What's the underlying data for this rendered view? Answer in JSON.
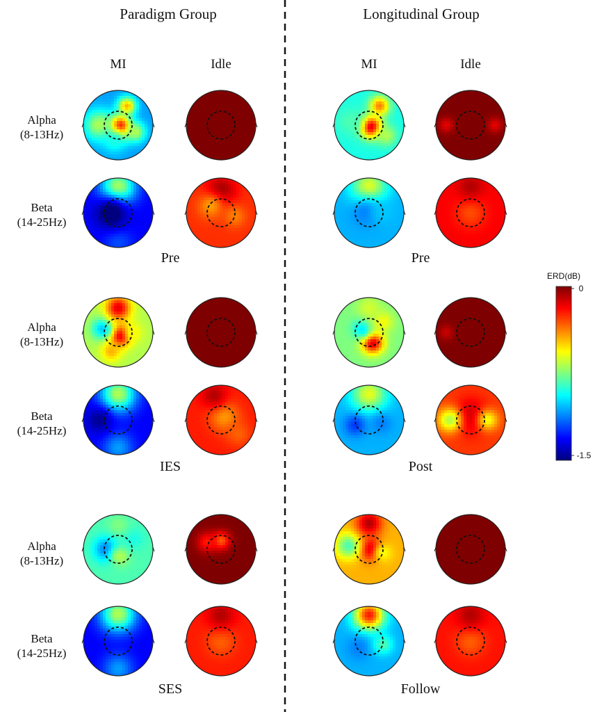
{
  "groups": [
    {
      "title": "Paradigm Group",
      "columns": [
        "MI",
        "Idle"
      ],
      "sessions": [
        "Pre",
        "IES",
        "SES"
      ]
    },
    {
      "title": "Longitudinal Group",
      "columns": [
        "MI",
        "Idle"
      ],
      "sessions": [
        "Pre",
        "Post",
        "Follow"
      ]
    }
  ],
  "rows": [
    {
      "band": "Alpha",
      "range": "(8-13Hz)"
    },
    {
      "band": "Beta",
      "range": "(14-25Hz)"
    }
  ],
  "colorbar": {
    "title": "ERD(dB)",
    "max_label": "0",
    "min_label": "-1.5",
    "max_value": 0,
    "min_value": -1.5,
    "colors": [
      "#00007f",
      "#0000ff",
      "#007fff",
      "#00ffff",
      "#7fff7f",
      "#ffff00",
      "#ff7f00",
      "#ff0000",
      "#7f0000"
    ]
  },
  "colors": {
    "divider": "#111111",
    "head_outline": "#222222",
    "dashed_circle": "#111111"
  },
  "maps": [
    {
      "id": "pg-pre-alpha-mi",
      "base": 0.28,
      "blobs": [
        [
          0.05,
          -0.05,
          1.0,
          0.22
        ],
        [
          0.25,
          0.55,
          0.7,
          0.18
        ],
        [
          -0.55,
          0.0,
          0.55,
          0.3
        ],
        [
          -0.1,
          -0.45,
          0.4,
          0.25
        ],
        [
          0.5,
          -0.2,
          0.55,
          0.2
        ]
      ]
    },
    {
      "id": "pg-pre-alpha-idle",
      "base": 1.0,
      "blobs": []
    },
    {
      "id": "pg-pre-beta-mi",
      "base": 0.12,
      "blobs": [
        [
          0.0,
          0.75,
          0.55,
          0.35
        ],
        [
          0.0,
          -0.85,
          0.2,
          0.3
        ],
        [
          -0.2,
          0.0,
          -0.05,
          0.3
        ]
      ]
    },
    {
      "id": "pg-pre-beta-idle",
      "base": 0.83,
      "blobs": [
        [
          0.0,
          0.65,
          0.97,
          0.3
        ],
        [
          -0.3,
          0.2,
          0.72,
          0.25
        ],
        [
          0.4,
          -0.1,
          0.75,
          0.22
        ]
      ]
    },
    {
      "id": "pg-ies-alpha-mi",
      "base": 0.55,
      "blobs": [
        [
          0.05,
          -0.1,
          0.95,
          0.22
        ],
        [
          -0.45,
          0.1,
          0.32,
          0.22
        ],
        [
          0.45,
          0.0,
          0.62,
          0.2
        ],
        [
          0.0,
          0.7,
          0.9,
          0.25
        ],
        [
          -0.2,
          -0.55,
          0.7,
          0.2
        ]
      ]
    },
    {
      "id": "pg-ies-alpha-idle",
      "base": 1.0,
      "blobs": []
    },
    {
      "id": "pg-ies-beta-mi",
      "base": 0.12,
      "blobs": [
        [
          0.0,
          0.75,
          0.55,
          0.35
        ],
        [
          0.0,
          -0.8,
          0.28,
          0.3
        ],
        [
          -0.55,
          0.0,
          0.02,
          0.25
        ]
      ]
    },
    {
      "id": "pg-ies-beta-idle",
      "base": 0.85,
      "blobs": [
        [
          0.1,
          0.1,
          0.72,
          0.3
        ],
        [
          -0.2,
          0.7,
          0.95,
          0.25
        ],
        [
          0.5,
          -0.4,
          0.78,
          0.25
        ]
      ]
    },
    {
      "id": "pg-ses-alpha-mi",
      "base": 0.45,
      "blobs": [
        [
          -0.35,
          0.0,
          0.25,
          0.25
        ],
        [
          0.05,
          -0.2,
          0.55,
          0.2
        ],
        [
          0.45,
          0.3,
          0.4,
          0.22
        ],
        [
          0.0,
          0.7,
          0.5,
          0.2
        ]
      ]
    },
    {
      "id": "pg-ses-alpha-idle",
      "base": 1.0,
      "blobs": [
        [
          0.0,
          0.25,
          0.78,
          0.18
        ],
        [
          -0.4,
          0.2,
          0.85,
          0.2
        ]
      ]
    },
    {
      "id": "pg-ses-beta-mi",
      "base": 0.12,
      "blobs": [
        [
          0.0,
          0.78,
          0.55,
          0.35
        ],
        [
          0.0,
          -0.8,
          0.28,
          0.3
        ]
      ]
    },
    {
      "id": "pg-ses-beta-idle",
      "base": 0.85,
      "blobs": [
        [
          0.0,
          0.0,
          0.78,
          0.3
        ],
        [
          0.0,
          0.75,
          0.95,
          0.28
        ]
      ]
    },
    {
      "id": "lg-pre-alpha-mi",
      "base": 0.4,
      "blobs": [
        [
          0.05,
          -0.05,
          0.95,
          0.22
        ],
        [
          0.3,
          0.55,
          0.75,
          0.2
        ],
        [
          -0.55,
          0.1,
          0.45,
          0.28
        ],
        [
          0.5,
          -0.3,
          0.55,
          0.2
        ]
      ]
    },
    {
      "id": "lg-pre-alpha-idle",
      "base": 1.0,
      "blobs": [
        [
          -0.7,
          0.0,
          0.9,
          0.15
        ],
        [
          0.7,
          0.0,
          0.9,
          0.15
        ]
      ]
    },
    {
      "id": "lg-pre-beta-mi",
      "base": 0.3,
      "blobs": [
        [
          0.0,
          0.75,
          0.6,
          0.35
        ],
        [
          -0.1,
          0.0,
          0.25,
          0.3
        ],
        [
          0.4,
          0.0,
          0.32,
          0.25
        ]
      ]
    },
    {
      "id": "lg-pre-beta-idle",
      "base": 0.88,
      "blobs": [
        [
          0.0,
          0.0,
          0.8,
          0.3
        ],
        [
          0.0,
          0.75,
          0.95,
          0.25
        ]
      ]
    },
    {
      "id": "lg-post-alpha-mi",
      "base": 0.5,
      "blobs": [
        [
          0.1,
          -0.3,
          0.92,
          0.22
        ],
        [
          -0.2,
          0.1,
          0.35,
          0.2
        ],
        [
          0.4,
          0.3,
          0.62,
          0.22
        ],
        [
          0.0,
          0.7,
          0.58,
          0.25
        ]
      ]
    },
    {
      "id": "lg-post-alpha-idle",
      "base": 1.0,
      "blobs": [
        [
          -0.7,
          0.0,
          0.93,
          0.15
        ]
      ]
    },
    {
      "id": "lg-post-beta-mi",
      "base": 0.3,
      "blobs": [
        [
          0.0,
          0.75,
          0.6,
          0.35
        ],
        [
          -0.4,
          -0.15,
          0.18,
          0.22
        ],
        [
          0.35,
          -0.1,
          0.25,
          0.22
        ]
      ]
    },
    {
      "id": "lg-post-beta-idle",
      "base": 0.82,
      "blobs": [
        [
          0.0,
          0.1,
          0.95,
          0.35
        ],
        [
          -0.6,
          0.0,
          0.55,
          0.25
        ],
        [
          0.5,
          0.0,
          0.62,
          0.22
        ]
      ]
    },
    {
      "id": "lg-follow-alpha-mi",
      "base": 0.7,
      "blobs": [
        [
          0.05,
          0.0,
          0.95,
          0.22
        ],
        [
          -0.6,
          0.1,
          0.45,
          0.25
        ],
        [
          0.4,
          -0.1,
          0.62,
          0.2
        ],
        [
          0.0,
          0.75,
          0.95,
          0.25
        ]
      ]
    },
    {
      "id": "lg-follow-alpha-idle",
      "base": 1.0,
      "blobs": []
    },
    {
      "id": "lg-follow-beta-mi",
      "base": 0.3,
      "blobs": [
        [
          0.0,
          0.75,
          0.85,
          0.3
        ],
        [
          -0.3,
          -0.2,
          0.25,
          0.25
        ],
        [
          0.4,
          -0.1,
          0.45,
          0.2
        ]
      ]
    },
    {
      "id": "lg-follow-beta-idle",
      "base": 0.86,
      "blobs": [
        [
          0.0,
          0.0,
          0.78,
          0.3
        ],
        [
          0.0,
          0.75,
          0.95,
          0.28
        ]
      ]
    }
  ]
}
